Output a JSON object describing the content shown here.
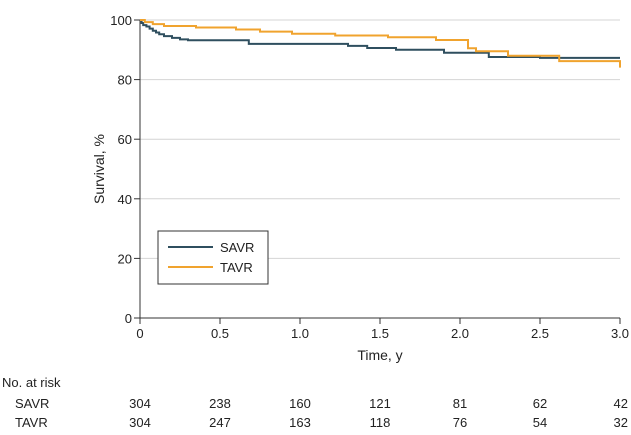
{
  "chart_data": {
    "type": "line",
    "title": "",
    "xlabel": "Time, y",
    "ylabel": "Survival, %",
    "xlim": [
      0,
      3.0
    ],
    "ylim": [
      0,
      100
    ],
    "x_ticks": [
      {
        "value": 0,
        "label": "0"
      },
      {
        "value": 0.5,
        "label": "0.5"
      },
      {
        "value": 1.0,
        "label": "1.0"
      },
      {
        "value": 1.5,
        "label": "1.5"
      },
      {
        "value": 2.0,
        "label": "2.0"
      },
      {
        "value": 2.5,
        "label": "2.5"
      },
      {
        "value": 3.0,
        "label": "3.0"
      }
    ],
    "y_ticks": [
      {
        "value": 0,
        "label": "0"
      },
      {
        "value": 20,
        "label": "20"
      },
      {
        "value": 40,
        "label": "40"
      },
      {
        "value": 60,
        "label": "60"
      },
      {
        "value": 80,
        "label": "80"
      },
      {
        "value": 100,
        "label": "100"
      }
    ],
    "grid": "horizontal",
    "step": true,
    "legend": {
      "position": "lower-left",
      "entries": [
        "SAVR",
        "TAVR"
      ]
    },
    "series": [
      {
        "name": "SAVR",
        "color": "#2f4f5f",
        "x": [
          0,
          0.01,
          0.02,
          0.04,
          0.06,
          0.08,
          0.1,
          0.12,
          0.15,
          0.2,
          0.25,
          0.3,
          0.68,
          1.3,
          1.42,
          1.6,
          1.9,
          2.18,
          2.5,
          3.0
        ],
        "y": [
          100,
          99,
          98.3,
          97.8,
          97.1,
          96.4,
          95.8,
          95.2,
          94.6,
          94,
          93.5,
          93.2,
          92,
          91.3,
          90.6,
          90,
          89,
          87.6,
          87.3,
          87.3
        ]
      },
      {
        "name": "TAVR",
        "color": "#f0a32e",
        "x": [
          0,
          0.03,
          0.08,
          0.15,
          0.35,
          0.6,
          0.75,
          0.95,
          1.22,
          1.55,
          1.85,
          2.05,
          2.1,
          2.3,
          2.62,
          2.99,
          3.0
        ],
        "y": [
          100,
          99.3,
          98.6,
          98,
          97.5,
          96.8,
          96.1,
          95.4,
          94.8,
          94.2,
          93.3,
          90.5,
          89.5,
          88,
          86.2,
          86.2,
          84
        ]
      }
    ],
    "risk_table": {
      "title": "No. at risk",
      "times": [
        0,
        0.5,
        1.0,
        1.5,
        2.0,
        2.5,
        3.0
      ],
      "rows": [
        {
          "name": "SAVR",
          "values": [
            "304",
            "238",
            "160",
            "121",
            "81",
            "62",
            "42"
          ]
        },
        {
          "name": "TAVR",
          "values": [
            "304",
            "247",
            "163",
            "118",
            "76",
            "54",
            "32"
          ]
        }
      ]
    }
  }
}
